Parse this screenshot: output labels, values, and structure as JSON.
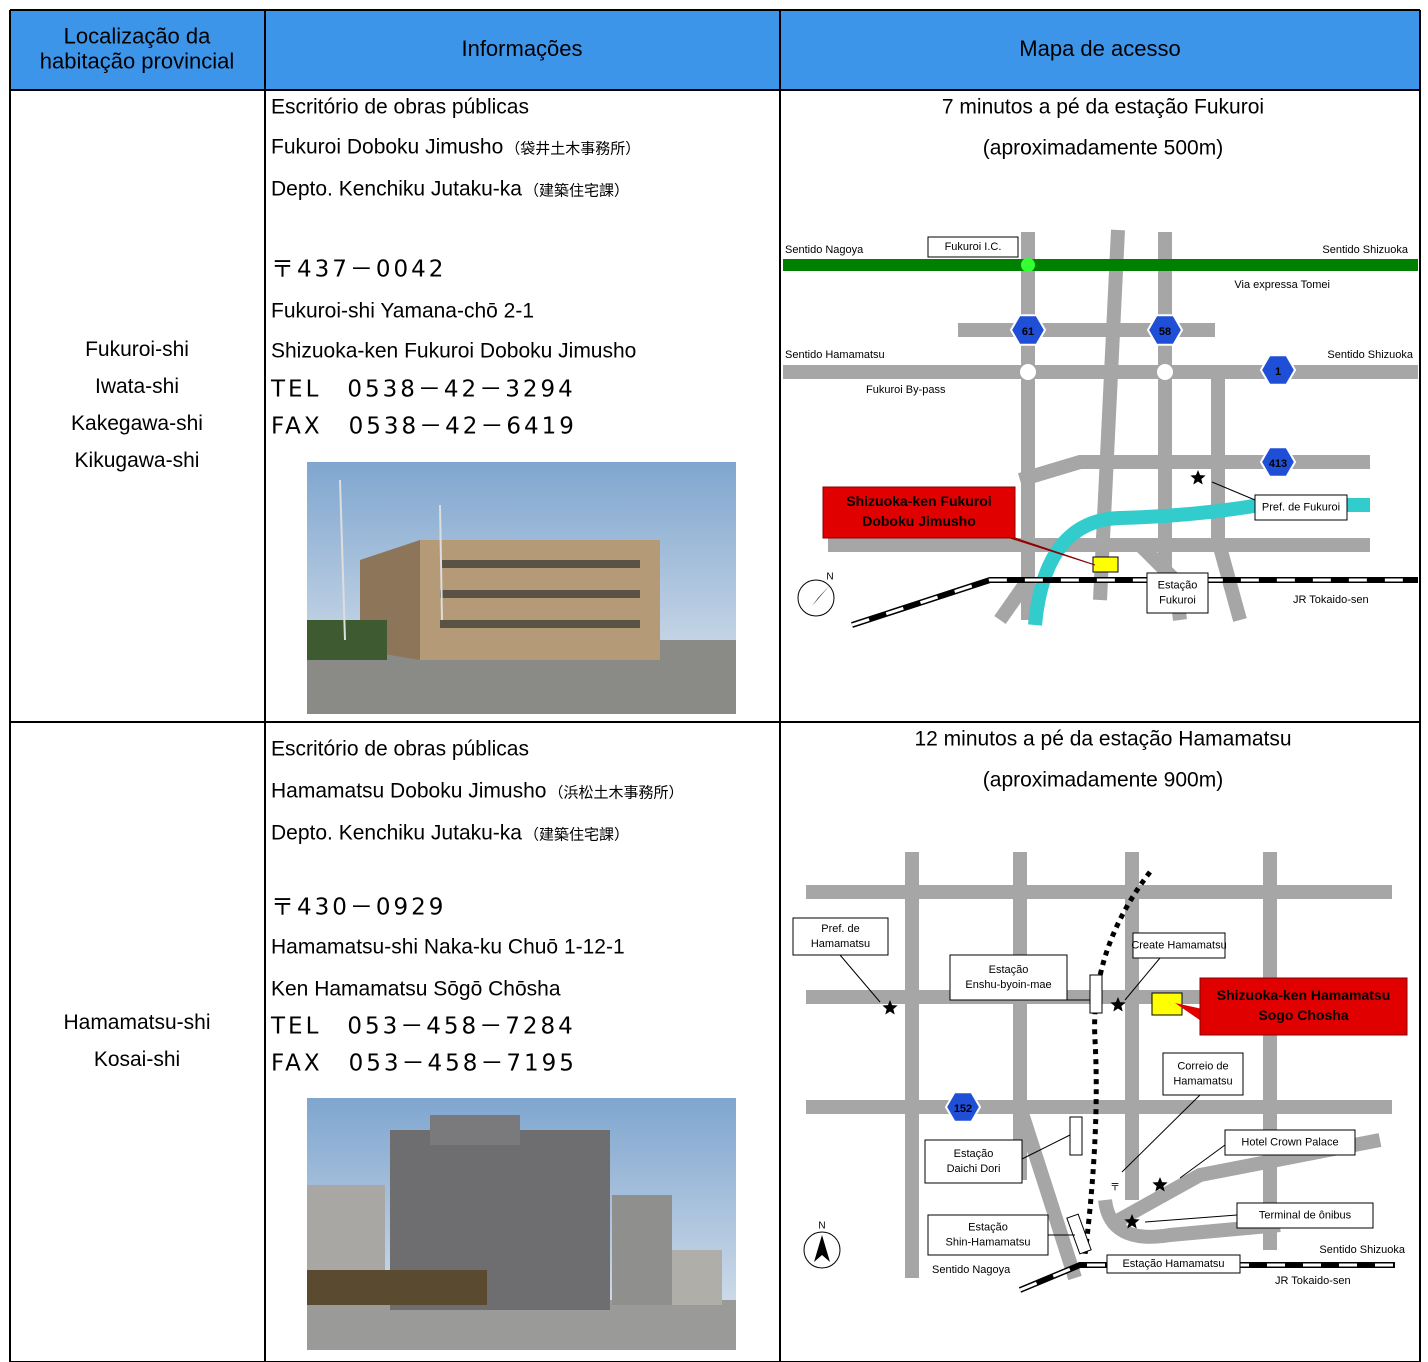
{
  "table": {
    "header": [
      [
        "Localização da",
        "habitação provincial"
      ],
      [
        "Informações"
      ],
      [
        "Mapa de acesso"
      ]
    ],
    "rows": [
      {
        "locations": [
          "Fukuroi-shi",
          "Iwata-shi",
          "Kakegawa-shi",
          "Kikugawa-shi"
        ],
        "info": [
          {
            "text": "Escritório de obras públicas"
          },
          {
            "text": "Fukuroi Doboku Jimusho",
            "note": "（袋井土木事務所）"
          },
          {
            "text": "Depto. Kenchiku Jutaku-ka",
            "note": "（建築住宅課）"
          },
          {
            "text": "〒437－0042"
          },
          {
            "text": "Fukuroi-shi Yamana-chō 2-1"
          },
          {
            "text": "Shizuoka-ken Fukuroi Doboku Jimusho"
          },
          {
            "text": "TEL　0538－42－3294"
          },
          {
            "text": "FAX　0538－42－6419"
          }
        ],
        "map": {
          "caption": [
            "7 minutos a pé da estação Fukuroi",
            "(aproximadamente 500m)"
          ],
          "labels": [
            [
              "Sentido Nagoya"
            ],
            [
              "Fukuroi I.C."
            ],
            [
              "Sentido Shizuoka"
            ],
            [
              "Via expressa Tomei"
            ],
            [
              "Sentido Hamamatsu"
            ],
            [
              "Sentido Shizuoka"
            ],
            [
              "Fukuroi By-pass"
            ],
            [
              "61"
            ],
            [
              "58"
            ],
            [
              "1"
            ],
            [
              "413"
            ],
            [
              "Pref. de Fukuroi"
            ],
            [
              "Shizuoka-ken Fukuroi",
              "Doboku Jimusho"
            ],
            [
              "Estação",
              "Fukuroi"
            ],
            [
              "JR Tokaido-sen"
            ],
            [
              "N"
            ]
          ]
        }
      },
      {
        "locations": [
          "Hamamatsu-shi",
          "Kosai-shi"
        ],
        "info": [
          {
            "text": "Escritório de obras públicas"
          },
          {
            "text": "Hamamatsu Doboku Jimusho",
            "note": "（浜松土木事務所）"
          },
          {
            "text": "Depto. Kenchiku Jutaku-ka",
            "note": "（建築住宅課）"
          },
          {
            "text": "〒430－0929"
          },
          {
            "text": "Hamamatsu-shi Naka-ku Chuō 1-12-1"
          },
          {
            "text": "Ken Hamamatsu Sōgō Chōsha"
          },
          {
            "text": "TEL　053－458－7284"
          },
          {
            "text": "FAX　053－458－7195"
          }
        ],
        "map": {
          "caption": [
            "12 minutos a pé da estação Hamamatsu",
            "(aproximadamente 900m)"
          ],
          "labels": [
            [
              "Pref. de",
              "Hamamatsu"
            ],
            [
              "Estação",
              "Enshu-byoin-mae"
            ],
            [
              "Create Hamamatsu"
            ],
            [
              "Shizuoka-ken Hamamatsu",
              "Sogo Chosha"
            ],
            [
              "Correio de",
              "Hamamatsu"
            ],
            [
              "152"
            ],
            [
              "Hotel Crown Palace"
            ],
            [
              "Estação",
              "Daichi Dori"
            ],
            [
              "〒"
            ],
            [
              "Terminal de ônibus"
            ],
            [
              "Estação",
              "Shin-Hamamatsu"
            ],
            [
              "Sentido Nagoya"
            ],
            [
              "Estação Hamamatsu"
            ],
            [
              "Sentido Shizuoka"
            ],
            [
              "JR Tokaido-sen"
            ],
            [
              "N"
            ]
          ]
        }
      }
    ]
  }
}
